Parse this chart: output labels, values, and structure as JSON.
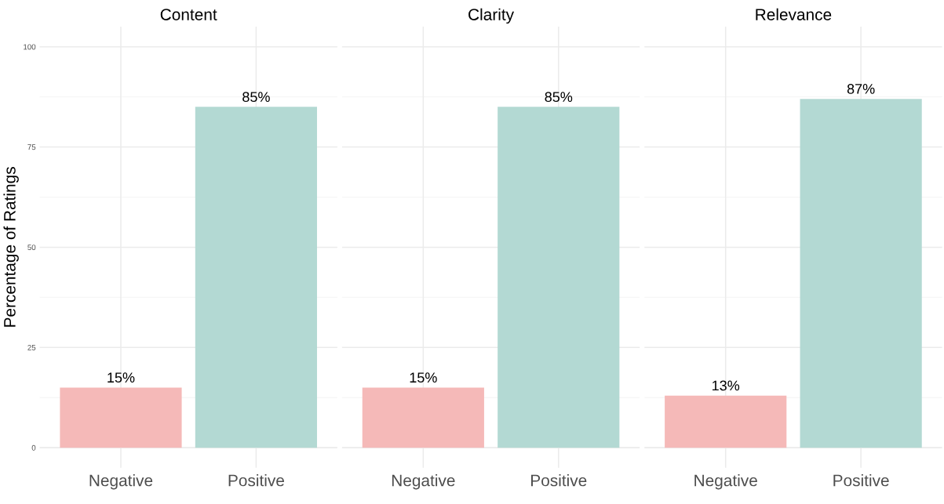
{
  "chart_data": [
    {
      "type": "bar",
      "title": "Content",
      "ylabel": "Percentage of Ratings",
      "categories": [
        "Negative",
        "Positive"
      ],
      "values": [
        15,
        85
      ],
      "value_labels": [
        "15%",
        "85%"
      ],
      "colors": [
        "#f5b9b8",
        "#b3d9d3"
      ],
      "ylim": [
        -5,
        105
      ],
      "yticks": [
        0,
        25,
        50,
        75,
        100
      ],
      "grid": true
    },
    {
      "type": "bar",
      "title": "Clarity",
      "categories": [
        "Negative",
        "Positive"
      ],
      "values": [
        15,
        85
      ],
      "value_labels": [
        "15%",
        "85%"
      ],
      "colors": [
        "#f5b9b8",
        "#b3d9d3"
      ],
      "ylim": [
        -5,
        105
      ],
      "yticks": [
        0,
        25,
        50,
        75,
        100
      ],
      "grid": true,
      "tick_labels": "x"
    },
    {
      "type": "bar",
      "title": "Relevance",
      "categories": [
        "Negative",
        "Positive"
      ],
      "values": [
        13,
        87
      ],
      "value_labels": [
        "13%",
        "87%"
      ],
      "colors": [
        "#f5b9b8",
        "#b3d9d3"
      ],
      "ylim": [
        -5,
        105
      ],
      "yticks": [
        0,
        25,
        50,
        75,
        100
      ],
      "grid": true,
      "tick_labels": "x"
    }
  ]
}
